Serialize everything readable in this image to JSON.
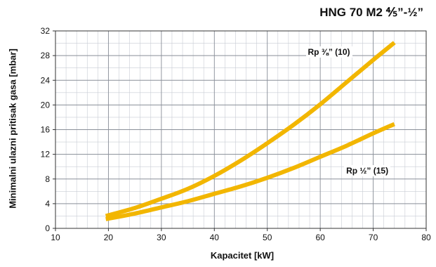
{
  "chart_data": {
    "type": "line",
    "title": "HNG 70  M2  ⅘”-½”",
    "xlabel": "Kapacitet [kW]",
    "ylabel": "Minimalni ulazni pritisak gasa [mbar]",
    "xlim": [
      10,
      80
    ],
    "ylim": [
      0,
      32
    ],
    "x_ticks": [
      10,
      20,
      30,
      40,
      50,
      60,
      70,
      80
    ],
    "y_ticks": [
      0,
      4,
      8,
      12,
      16,
      20,
      24,
      28,
      32
    ],
    "grid": true,
    "series": [
      {
        "name": "Rp ⅜” (10)",
        "color": "#f2b600",
        "x": [
          19.5,
          25,
          30,
          35,
          40,
          45,
          50,
          55,
          60,
          65,
          70,
          74
        ],
        "y": [
          2.0,
          3.3,
          4.8,
          6.4,
          8.5,
          11.0,
          13.8,
          16.8,
          20.1,
          23.7,
          27.3,
          30.1
        ]
      },
      {
        "name": "Rp ½” (15)",
        "color": "#f2b600",
        "x": [
          19.5,
          25,
          30,
          35,
          40,
          45,
          50,
          55,
          60,
          65,
          70,
          74
        ],
        "y": [
          1.5,
          2.4,
          3.4,
          4.4,
          5.6,
          6.8,
          8.2,
          9.8,
          11.6,
          13.4,
          15.4,
          16.9
        ]
      }
    ]
  }
}
